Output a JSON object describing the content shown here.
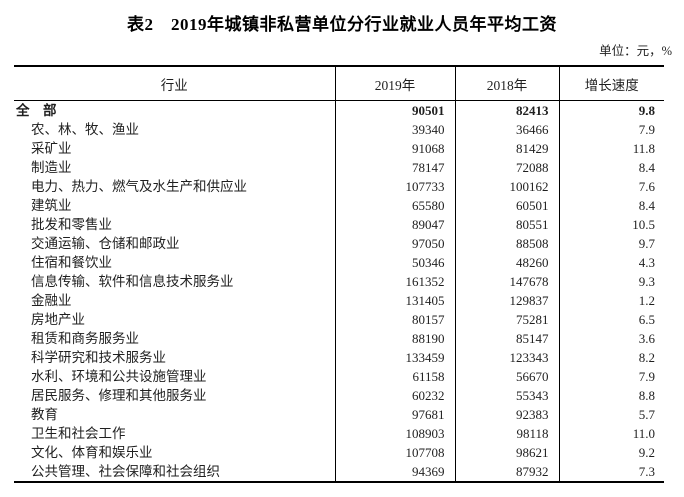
{
  "title": "表2　2019年城镇非私营单位分行业就业人员年平均工资",
  "unit_label": "单位：元，%",
  "colors": {
    "border": "#000000",
    "text": "#1f1f1f",
    "background": "#ffffff"
  },
  "table": {
    "columns": [
      "行业",
      "2019年",
      "2018年",
      "增长速度"
    ],
    "rows": [
      {
        "industry": "全　部",
        "y2019": 90501,
        "y2018": 82413,
        "growth": "9.8",
        "is_total": true
      },
      {
        "industry": "农、林、牧、渔业",
        "y2019": 39340,
        "y2018": 36466,
        "growth": "7.9"
      },
      {
        "industry": "采矿业",
        "y2019": 91068,
        "y2018": 81429,
        "growth": "11.8"
      },
      {
        "industry": "制造业",
        "y2019": 78147,
        "y2018": 72088,
        "growth": "8.4"
      },
      {
        "industry": "电力、热力、燃气及水生产和供应业",
        "y2019": 107733,
        "y2018": 100162,
        "growth": "7.6"
      },
      {
        "industry": "建筑业",
        "y2019": 65580,
        "y2018": 60501,
        "growth": "8.4"
      },
      {
        "industry": "批发和零售业",
        "y2019": 89047,
        "y2018": 80551,
        "growth": "10.5"
      },
      {
        "industry": "交通运输、仓储和邮政业",
        "y2019": 97050,
        "y2018": 88508,
        "growth": "9.7"
      },
      {
        "industry": "住宿和餐饮业",
        "y2019": 50346,
        "y2018": 48260,
        "growth": "4.3"
      },
      {
        "industry": "信息传输、软件和信息技术服务业",
        "y2019": 161352,
        "y2018": 147678,
        "growth": "9.3"
      },
      {
        "industry": "金融业",
        "y2019": 131405,
        "y2018": 129837,
        "growth": "1.2"
      },
      {
        "industry": "房地产业",
        "y2019": 80157,
        "y2018": 75281,
        "growth": "6.5"
      },
      {
        "industry": "租赁和商务服务业",
        "y2019": 88190,
        "y2018": 85147,
        "growth": "3.6"
      },
      {
        "industry": "科学研究和技术服务业",
        "y2019": 133459,
        "y2018": 123343,
        "growth": "8.2"
      },
      {
        "industry": "水利、环境和公共设施管理业",
        "y2019": 61158,
        "y2018": 56670,
        "growth": "7.9"
      },
      {
        "industry": "居民服务、修理和其他服务业",
        "y2019": 60232,
        "y2018": 55343,
        "growth": "8.8"
      },
      {
        "industry": "教育",
        "y2019": 97681,
        "y2018": 92383,
        "growth": "5.7"
      },
      {
        "industry": "卫生和社会工作",
        "y2019": 108903,
        "y2018": 98118,
        "growth": "11.0"
      },
      {
        "industry": "文化、体育和娱乐业",
        "y2019": 107708,
        "y2018": 98621,
        "growth": "9.2"
      },
      {
        "industry": "公共管理、社会保障和社会组织",
        "y2019": 94369,
        "y2018": 87932,
        "growth": "7.3"
      }
    ]
  }
}
